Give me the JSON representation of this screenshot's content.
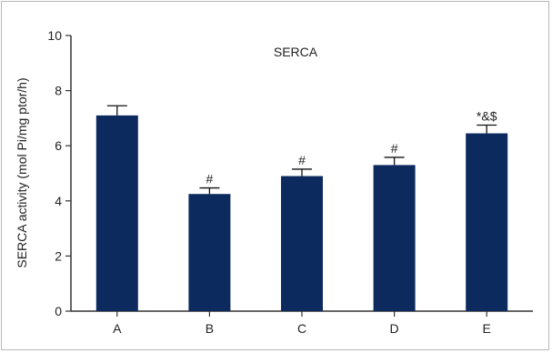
{
  "chart_data": {
    "type": "bar",
    "title": "SERCA",
    "ylabel": "SERCA activity (mol Pi/mg ptor/h)",
    "xlabel": "",
    "categories": [
      "A",
      "B",
      "C",
      "D",
      "E"
    ],
    "values": [
      7.1,
      4.25,
      4.9,
      5.3,
      6.45
    ],
    "errors": [
      0.35,
      0.22,
      0.25,
      0.28,
      0.3
    ],
    "annotations": [
      "",
      "#",
      "#",
      "#",
      "*&$"
    ],
    "ylim": [
      0,
      10
    ],
    "yticks": [
      0,
      2,
      4,
      6,
      8,
      10
    ],
    "grid": false,
    "bar_color": "#0c2a5e"
  }
}
